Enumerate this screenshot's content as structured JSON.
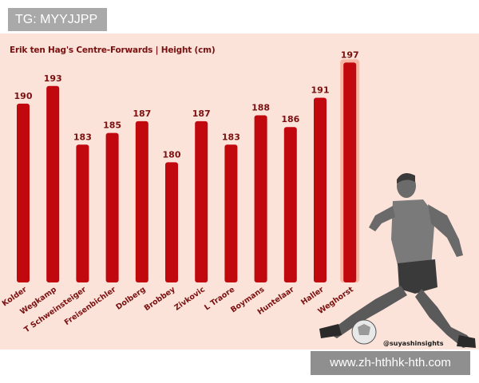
{
  "watermark_top": "TG: MYYJJPP",
  "watermark_bottom": "www.zh-hthhk-hth.com",
  "credit": "@suyashinsights",
  "colors": {
    "background": "#fbe3d9",
    "bar": "#c1080f",
    "highlight_glow": "#f4a38c",
    "label": "#7a1010"
  },
  "chart_data": {
    "type": "bar",
    "title": "Erik ten Hag's Centre-Forwards | Height (cm)",
    "xlabel": "",
    "ylabel": "",
    "grid": false,
    "categories": [
      "Kolder",
      "Wegkamp",
      "T Schweinsteiger",
      "Freisenbichler",
      "Dolberg",
      "Brobbey",
      "Zivkovic",
      "L Traore",
      "Boymans",
      "Huntelaar",
      "Haller",
      "Weghorst"
    ],
    "values": [
      190,
      193,
      183,
      185,
      187,
      180,
      187,
      183,
      188,
      186,
      191,
      197
    ],
    "highlighted_category": "Weghorst"
  }
}
